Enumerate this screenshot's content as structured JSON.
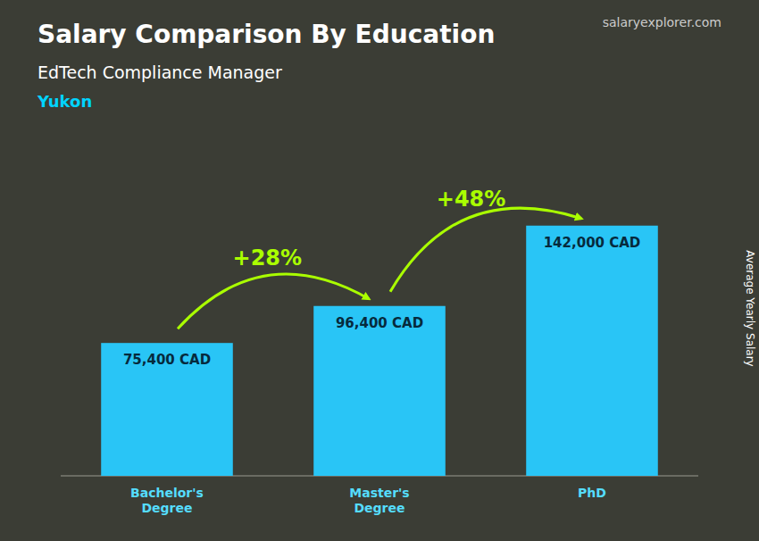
{
  "chart_data": {
    "type": "bar",
    "title": "Salary Comparison By Education",
    "subtitle": [
      "EdTech Compliance Manager",
      "Yukon"
    ],
    "source": "salaryexplorer.com",
    "ylabel": "Average Yearly Salary",
    "categories": [
      "Bachelor's\nDegree",
      "Master's\nDegree",
      "PhD"
    ],
    "values": [
      75400,
      96400,
      142000
    ],
    "value_labels": [
      "75,400 CAD",
      "96,400 CAD",
      "142,000 CAD"
    ],
    "annotations": [
      "+28%",
      "+48%"
    ],
    "color": "#29c5f6",
    "ylim": [
      0,
      190000
    ],
    "grid": false,
    "data_labels": true,
    "tick_labels": "x"
  }
}
